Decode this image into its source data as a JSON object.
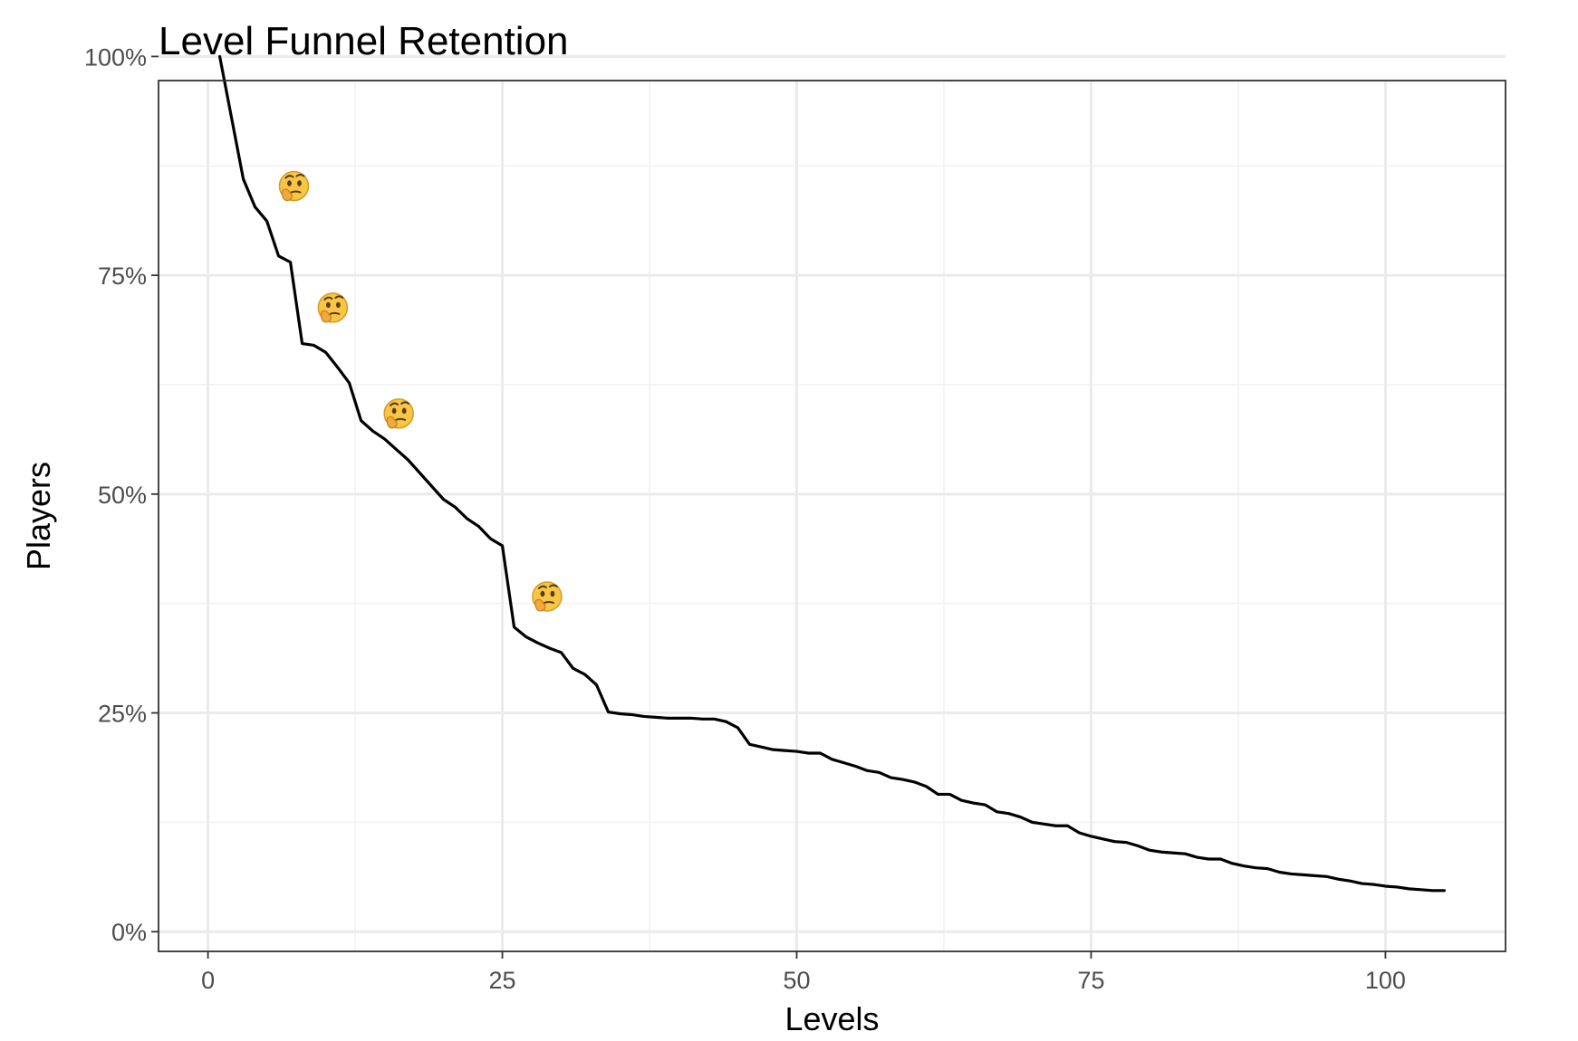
{
  "chart_data": {
    "type": "line",
    "title": "Level Funnel Retention",
    "xlabel": "Levels",
    "ylabel": "Players",
    "xlim": [
      -4.2,
      110.2
    ],
    "ylim": [
      -0.0225,
      0.9725
    ],
    "x_ticks": [
      0,
      25,
      50,
      75,
      100
    ],
    "x_tick_labels": [
      "0",
      "25",
      "50",
      "75",
      "100"
    ],
    "x_minor_ticks": [
      12.5,
      37.5,
      62.5,
      87.5
    ],
    "y_ticks": [
      0,
      0.25,
      0.5,
      0.75,
      1.0
    ],
    "y_tick_labels": [
      "0%",
      "25%",
      "50%",
      "75%",
      "100%"
    ],
    "y_minor_ticks": [
      0.125,
      0.375,
      0.625,
      0.875
    ],
    "grid": true,
    "series": [
      {
        "color": "#000000",
        "x": [
          1,
          2,
          3,
          4,
          5,
          6,
          7,
          8,
          9,
          10,
          11,
          12,
          13,
          14,
          15,
          16,
          17,
          18,
          19,
          20,
          21,
          22,
          23,
          24,
          25,
          26,
          27,
          28,
          29,
          30,
          31,
          32,
          33,
          34,
          35,
          36,
          37,
          38,
          39,
          40,
          41,
          42,
          43,
          44,
          45,
          46,
          47,
          48,
          49,
          50,
          51,
          52,
          53,
          54,
          55,
          56,
          57,
          58,
          59,
          60,
          61,
          62,
          63,
          64,
          65,
          66,
          67,
          68,
          69,
          70,
          71,
          72,
          73,
          74,
          75,
          76,
          77,
          78,
          79,
          80,
          81,
          82,
          83,
          84,
          85,
          86,
          87,
          88,
          89,
          90,
          91,
          92,
          93,
          94,
          95,
          96,
          97,
          98,
          99,
          100,
          101,
          102,
          103,
          104,
          105
        ],
        "y": [
          1.0,
          0.93,
          0.86,
          0.828,
          0.812,
          0.772,
          0.765,
          0.672,
          0.67,
          0.662,
          0.645,
          0.627,
          0.584,
          0.572,
          0.563,
          0.551,
          0.539,
          0.524,
          0.509,
          0.494,
          0.485,
          0.472,
          0.463,
          0.449,
          0.441,
          0.348,
          0.337,
          0.33,
          0.324,
          0.319,
          0.301,
          0.294,
          0.282,
          0.251,
          0.249,
          0.248,
          0.246,
          0.245,
          0.244,
          0.244,
          0.244,
          0.243,
          0.243,
          0.24,
          0.233,
          0.214,
          0.211,
          0.208,
          0.207,
          0.206,
          0.204,
          0.204,
          0.197,
          0.193,
          0.189,
          0.184,
          0.182,
          0.176,
          0.174,
          0.171,
          0.166,
          0.157,
          0.157,
          0.15,
          0.147,
          0.145,
          0.137,
          0.135,
          0.131,
          0.125,
          0.123,
          0.121,
          0.121,
          0.113,
          0.109,
          0.106,
          0.103,
          0.102,
          0.098,
          0.093,
          0.091,
          0.09,
          0.089,
          0.085,
          0.083,
          0.083,
          0.078,
          0.075,
          0.073,
          0.072,
          0.068,
          0.066,
          0.065,
          0.064,
          0.063,
          0.06,
          0.058,
          0.055,
          0.054,
          0.052,
          0.051,
          0.049,
          0.048,
          0.047,
          0.047
        ]
      }
    ],
    "markers": {
      "symbol": "thinking-face-emoji",
      "points": [
        {
          "x": 7.3,
          "y": 0.852
        },
        {
          "x": 10.6,
          "y": 0.713
        },
        {
          "x": 16.2,
          "y": 0.592
        },
        {
          "x": 28.8,
          "y": 0.383
        }
      ]
    }
  }
}
